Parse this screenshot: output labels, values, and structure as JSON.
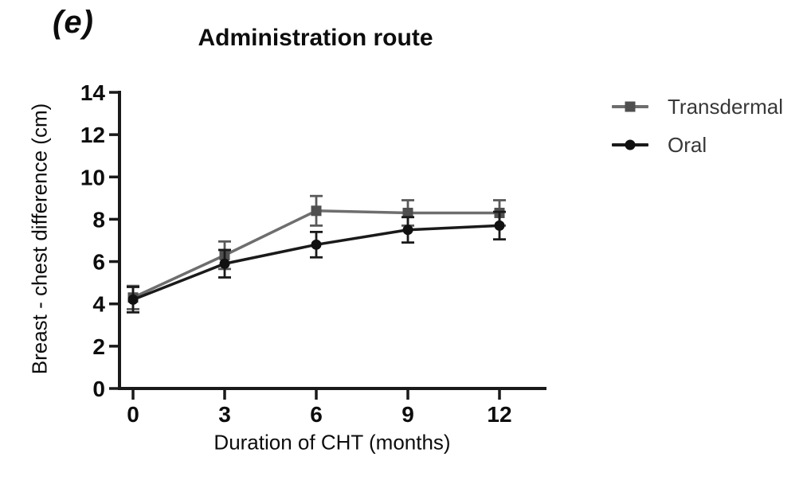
{
  "figure": {
    "panel_label": "(e)"
  },
  "chart_data": {
    "type": "line",
    "title": "Administration route",
    "xlabel": "Duration of CHT (months)",
    "ylabel": "Breast - chest difference (cm)",
    "x": [
      0,
      3,
      6,
      9,
      12
    ],
    "xticks": [
      0,
      3,
      6,
      9,
      12
    ],
    "ylim": [
      0,
      14
    ],
    "yticks": [
      0,
      2,
      4,
      6,
      8,
      10,
      12,
      14
    ],
    "grid": false,
    "legend_position": "right",
    "axis_color": "#1a1a1a",
    "background_color": "#ffffff",
    "series": [
      {
        "name": "Transdermal",
        "marker": "square",
        "color": "#6e6e6e",
        "marker_color": "#4f4f4f",
        "error_color": "#5a5a5a",
        "values": [
          4.3,
          6.3,
          8.4,
          8.3,
          8.3
        ],
        "errors": [
          0.55,
          0.65,
          0.7,
          0.6,
          0.6
        ]
      },
      {
        "name": "Oral",
        "marker": "circle",
        "color": "#1a1a1a",
        "marker_color": "#111111",
        "error_color": "#1a1a1a",
        "values": [
          4.2,
          5.9,
          6.8,
          7.5,
          7.7
        ],
        "errors": [
          0.6,
          0.65,
          0.6,
          0.6,
          0.65
        ]
      }
    ]
  }
}
